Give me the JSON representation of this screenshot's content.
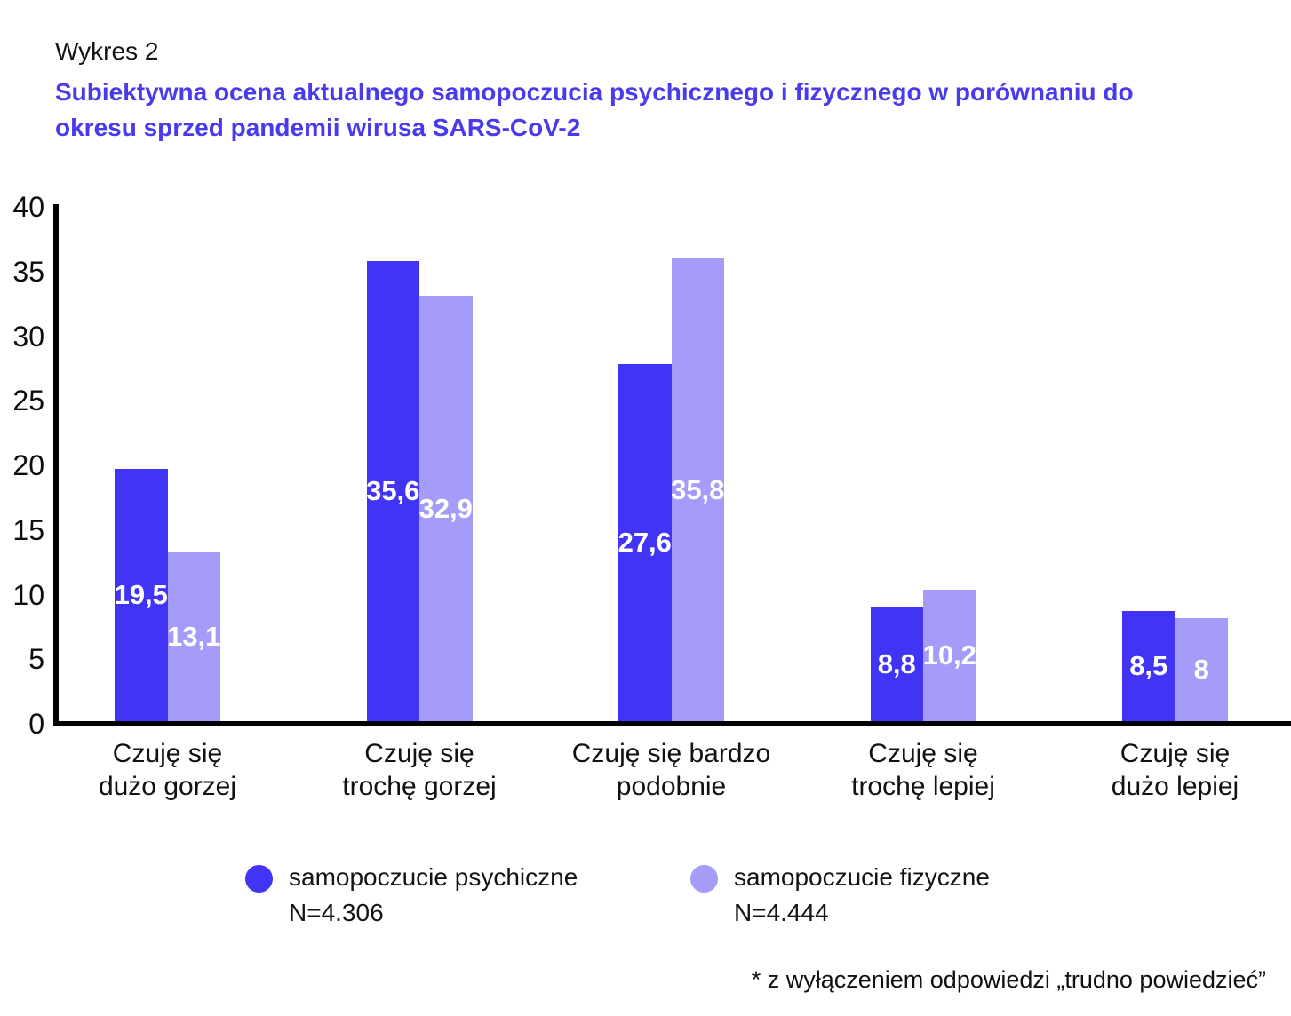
{
  "header": {
    "label": "Wykres 2",
    "title": "Subiektywna ocena aktualnego samopoczucia  psychicznego i fizycznego w porównaniu do\nokresu sprzed pandemii wirusa SARS-CoV-2"
  },
  "colors": {
    "title_accent": "#4a3aee",
    "series_psychiczne": "#4134f4",
    "series_fizyczne": "#a49cf8",
    "axis": "#000000",
    "text": "#141414",
    "bar_value_text": "#ffffff"
  },
  "chart_data": {
    "type": "bar",
    "title": "Subiektywna ocena aktualnego samopoczucia  psychicznego i fizycznego w porównaniu do okresu sprzed pandemii wirusa SARS-CoV-2",
    "categories": [
      "Czuję się\ndużo gorzej",
      "Czuję się\ntrochę gorzej",
      "Czuję się bardzo\npodobnie",
      "Czuję się\ntrochę lepiej",
      "Czuję się\ndużo lepiej"
    ],
    "series": [
      {
        "name": "samopoczucie psychiczne",
        "n_label": "N=4.306",
        "color": "#4134f4",
        "values": [
          19.5,
          35.6,
          27.6,
          8.8,
          8.5
        ],
        "labels": [
          "19,5",
          "35,6",
          "27,6",
          "8,8",
          "8,5"
        ]
      },
      {
        "name": "samopoczucie fizyczne",
        "n_label": "N=4.444",
        "color": "#a49cf8",
        "values": [
          13.1,
          32.9,
          35.8,
          10.2,
          8.0
        ],
        "labels": [
          "13,1",
          "32,9",
          "35,8",
          "10,2",
          "8"
        ]
      }
    ],
    "xlabel": "",
    "ylabel": "",
    "ylim": [
      0,
      40
    ],
    "yticks": [
      0,
      5,
      10,
      15,
      20,
      25,
      30,
      35,
      40
    ],
    "grid": false,
    "legend_position": "bottom",
    "footnote": "* z wyłączeniem odpowiedzi „trudno powiedzieć”"
  }
}
